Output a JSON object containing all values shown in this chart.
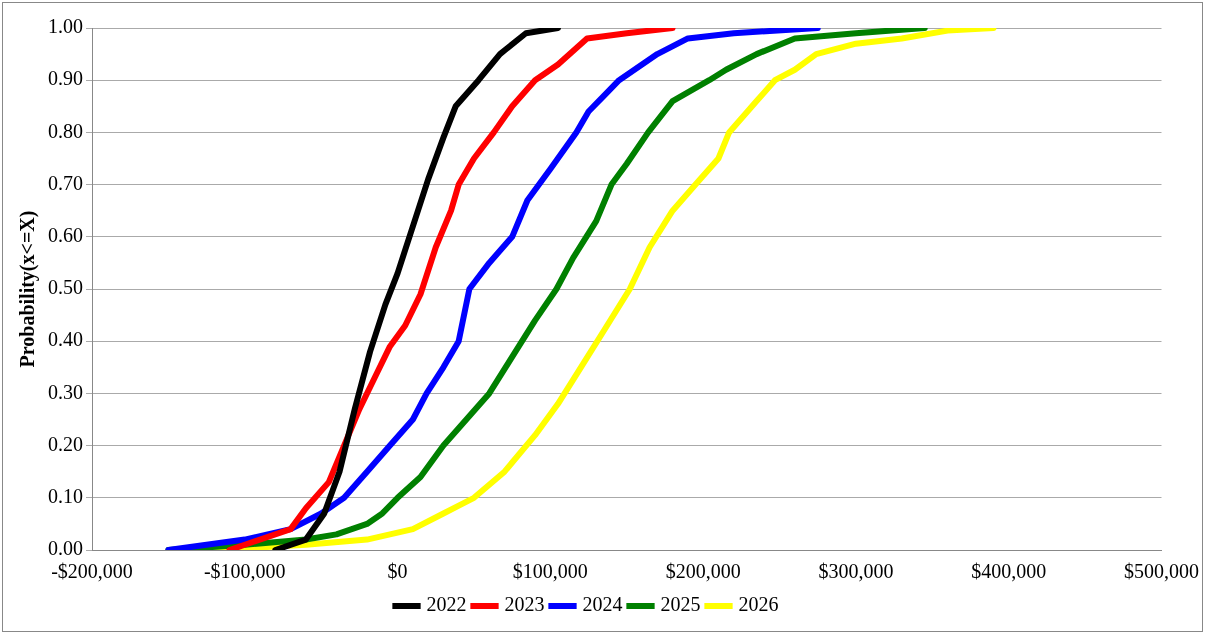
{
  "chart_data": {
    "type": "line",
    "ylabel": "Probability(x<=X)",
    "xlim": [
      -200000,
      500000
    ],
    "xticks": [
      {
        "value": -200000,
        "label": "-$200,000"
      },
      {
        "value": -100000,
        "label": "-$100,000"
      },
      {
        "value": 0,
        "label": "$0"
      },
      {
        "value": 100000,
        "label": "$100,000"
      },
      {
        "value": 200000,
        "label": "$200,000"
      },
      {
        "value": 300000,
        "label": "$300,000"
      },
      {
        "value": 400000,
        "label": "$400,000"
      },
      {
        "value": 500000,
        "label": "$500,000"
      }
    ],
    "ylim": [
      0,
      1
    ],
    "yticks": [
      {
        "value": 0,
        "label": "0.00"
      },
      {
        "value": 0.1,
        "label": "0.10"
      },
      {
        "value": 0.2,
        "label": "0.20"
      },
      {
        "value": 0.3,
        "label": "0.30"
      },
      {
        "value": 0.4,
        "label": "0.40"
      },
      {
        "value": 0.5,
        "label": "0.50"
      },
      {
        "value": 0.6,
        "label": "0.60"
      },
      {
        "value": 0.7,
        "label": "0.70"
      },
      {
        "value": 0.8,
        "label": "0.80"
      },
      {
        "value": 0.9,
        "label": "0.90"
      },
      {
        "value": 1,
        "label": "1.00"
      }
    ],
    "grid": "y",
    "legend": "bottom",
    "marker": "none",
    "line_style": "solid",
    "series": [
      {
        "name": "2022",
        "color": "#000000",
        "x": [
          -80000,
          -60000,
          -48000,
          -38000,
          -28000,
          -18000,
          -8000,
          0,
          10000,
          20000,
          30000,
          38000,
          53000,
          67000,
          84000,
          105000
        ],
        "values": [
          0,
          0.02,
          0.07,
          0.15,
          0.27,
          0.38,
          0.47,
          0.53,
          0.62,
          0.71,
          0.79,
          0.85,
          0.9,
          0.95,
          0.99,
          1
        ]
      },
      {
        "name": "2023",
        "color": "#ff0000",
        "x": [
          -110000,
          -100000,
          -70000,
          -60000,
          -45000,
          -35000,
          -25000,
          -15000,
          -5000,
          5000,
          15000,
          25000,
          35000,
          40000,
          50000,
          63000,
          75000,
          90000,
          105000,
          124000,
          150000,
          180000
        ],
        "values": [
          0,
          0.01,
          0.04,
          0.08,
          0.13,
          0.2,
          0.27,
          0.33,
          0.39,
          0.43,
          0.49,
          0.58,
          0.65,
          0.7,
          0.75,
          0.8,
          0.85,
          0.9,
          0.93,
          0.98,
          0.99,
          1
        ]
      },
      {
        "name": "2024",
        "color": "#0000ff",
        "x": [
          -150000,
          -100000,
          -70000,
          -50000,
          -35000,
          -20000,
          -5000,
          10000,
          19000,
          30000,
          40000,
          47000,
          60000,
          75000,
          85000,
          100000,
          117000,
          125000,
          135000,
          145000,
          170000,
          190000,
          220000,
          275000
        ],
        "values": [
          0,
          0.02,
          0.04,
          0.07,
          0.1,
          0.15,
          0.2,
          0.25,
          0.3,
          0.35,
          0.4,
          0.5,
          0.55,
          0.6,
          0.67,
          0.73,
          0.8,
          0.84,
          0.87,
          0.9,
          0.95,
          0.98,
          0.99,
          1
        ]
      },
      {
        "name": "2025",
        "color": "#008000",
        "x": [
          -150000,
          -100000,
          -60000,
          -40000,
          -20000,
          -10000,
          0,
          15000,
          30000,
          45000,
          60000,
          75000,
          90000,
          104000,
          115000,
          130000,
          140000,
          150000,
          164000,
          180000,
          204000,
          215000,
          235000,
          260000,
          300000,
          345000
        ],
        "values": [
          0,
          0.01,
          0.02,
          0.03,
          0.05,
          0.07,
          0.1,
          0.14,
          0.2,
          0.25,
          0.3,
          0.37,
          0.44,
          0.5,
          0.56,
          0.63,
          0.7,
          0.74,
          0.8,
          0.86,
          0.9,
          0.92,
          0.95,
          0.98,
          0.99,
          1
        ]
      },
      {
        "name": "2026",
        "color": "#ffff00",
        "x": [
          -120000,
          -60000,
          -20000,
          10000,
          30000,
          50000,
          70000,
          90000,
          105000,
          120000,
          135000,
          152000,
          165000,
          180000,
          195000,
          210000,
          217000,
          235000,
          247000,
          260000,
          274000,
          300000,
          330000,
          360000,
          390000
        ],
        "values": [
          0,
          0.01,
          0.02,
          0.04,
          0.07,
          0.1,
          0.15,
          0.22,
          0.28,
          0.35,
          0.42,
          0.5,
          0.58,
          0.65,
          0.7,
          0.75,
          0.8,
          0.86,
          0.9,
          0.92,
          0.95,
          0.97,
          0.98,
          0.995,
          1
        ]
      }
    ]
  }
}
